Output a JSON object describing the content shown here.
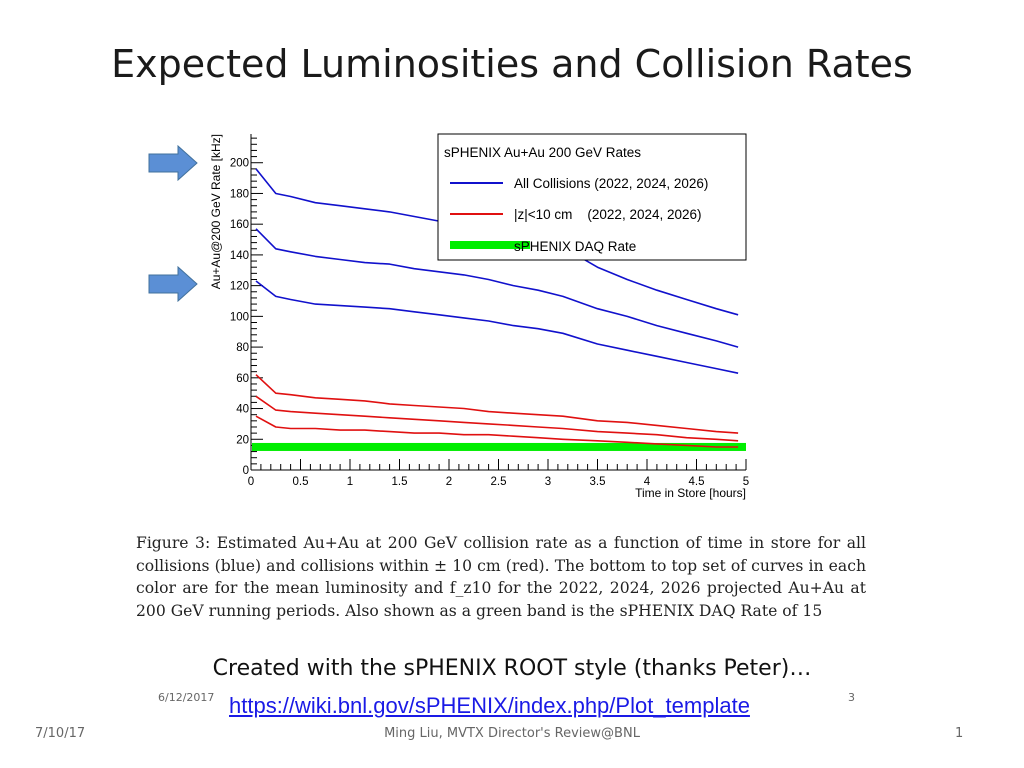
{
  "slide": {
    "title": "Expected Luminosities and Collision Rates",
    "caption": "Figure 3: Estimated Au+Au at 200 GeV collision rate as a function of time in store for all collisions (blue) and collisions within ± 10 cm (red). The bottom to top set of curves in each color are for the mean luminosity and f_z10 for the 2022, 2024, 2026 projected Au+Au at 200 GeV running periods. Also shown as a green band is the sPHENIX DAQ Rate of 15",
    "credit": "Created with the sPHENIX ROOT style (thanks Peter)…",
    "link": "https://wiki.bnl.gov/sPHENIX/index.php/Plot_template",
    "inner_date": "6/12/2017",
    "inner_page": "3",
    "footer_date": "7/10/17",
    "footer_center": "Ming Liu, MVTX Director's Review@BNL",
    "footer_page": "1"
  },
  "colors": {
    "blue": "#1111cc",
    "red": "#e01010",
    "green": "#00ee00",
    "arrow": "#5b8fd5",
    "link": "#1a1ae6"
  },
  "chart_data": {
    "type": "line",
    "title": "",
    "xlabel": "Time in Store [hours]",
    "ylabel": "Au+Au@200 GeV Rate [kHz]",
    "xlim": [
      0,
      5
    ],
    "ylim": [
      0,
      220
    ],
    "x_ticks": [
      "0",
      "0.5",
      "1",
      "1.5",
      "2",
      "2.5",
      "3",
      "3.5",
      "4",
      "4.5",
      "5"
    ],
    "y_ticks": [
      "0",
      "20",
      "40",
      "60",
      "80",
      "100",
      "120",
      "140",
      "160",
      "180",
      "200"
    ],
    "legend": {
      "position": "top-right",
      "title": "sPHENIX Au+Au 200 GeV Rates",
      "entries": [
        {
          "label": "All Collisions (2022, 2024, 2026)",
          "color": "#1111cc",
          "style": "line"
        },
        {
          "label": "|z|<10 cm    (2022, 2024, 2026)",
          "color": "#e01010",
          "style": "line"
        },
        {
          "label": "sPHENIX DAQ Rate",
          "color": "#00ee00",
          "style": "band"
        }
      ]
    },
    "x": [
      0.05,
      0.25,
      0.4,
      0.65,
      0.9,
      1.15,
      1.4,
      1.65,
      1.9,
      2.15,
      2.4,
      2.65,
      2.9,
      3.15,
      3.5,
      3.8,
      4.1,
      4.4,
      4.7,
      4.92
    ],
    "series": [
      {
        "color": "#1111cc",
        "values": [
          196,
          180,
          178,
          174,
          172,
          170,
          168,
          165,
          162,
          160,
          157,
          153,
          150,
          145,
          132,
          124,
          117,
          111,
          105,
          101
        ]
      },
      {
        "color": "#1111cc",
        "values": [
          157,
          144,
          142,
          139,
          137,
          135,
          134,
          131,
          129,
          127,
          124,
          120,
          117,
          113,
          105,
          100,
          94,
          89,
          84,
          80
        ]
      },
      {
        "color": "#1111cc",
        "values": [
          123,
          113,
          111,
          108,
          107,
          106,
          105,
          103,
          101,
          99,
          97,
          94,
          92,
          89,
          82,
          78,
          74,
          70,
          66,
          63
        ]
      },
      {
        "color": "#e01010",
        "values": [
          62,
          50,
          49,
          47,
          46,
          45,
          43,
          42,
          41,
          40,
          38,
          37,
          36,
          35,
          32,
          31,
          29,
          27,
          25,
          24
        ]
      },
      {
        "color": "#e01010",
        "values": [
          48,
          39,
          38,
          37,
          36,
          35,
          34,
          33,
          32,
          31,
          30,
          29,
          28,
          27,
          25,
          24,
          23,
          21,
          20,
          19
        ]
      },
      {
        "color": "#e01010",
        "values": [
          35,
          28,
          27,
          27,
          26,
          26,
          25,
          24,
          24,
          23,
          23,
          22,
          21,
          20,
          19,
          18,
          17,
          16,
          15,
          15
        ]
      }
    ],
    "band": {
      "label": "sPHENIX DAQ Rate",
      "value": 15
    }
  }
}
